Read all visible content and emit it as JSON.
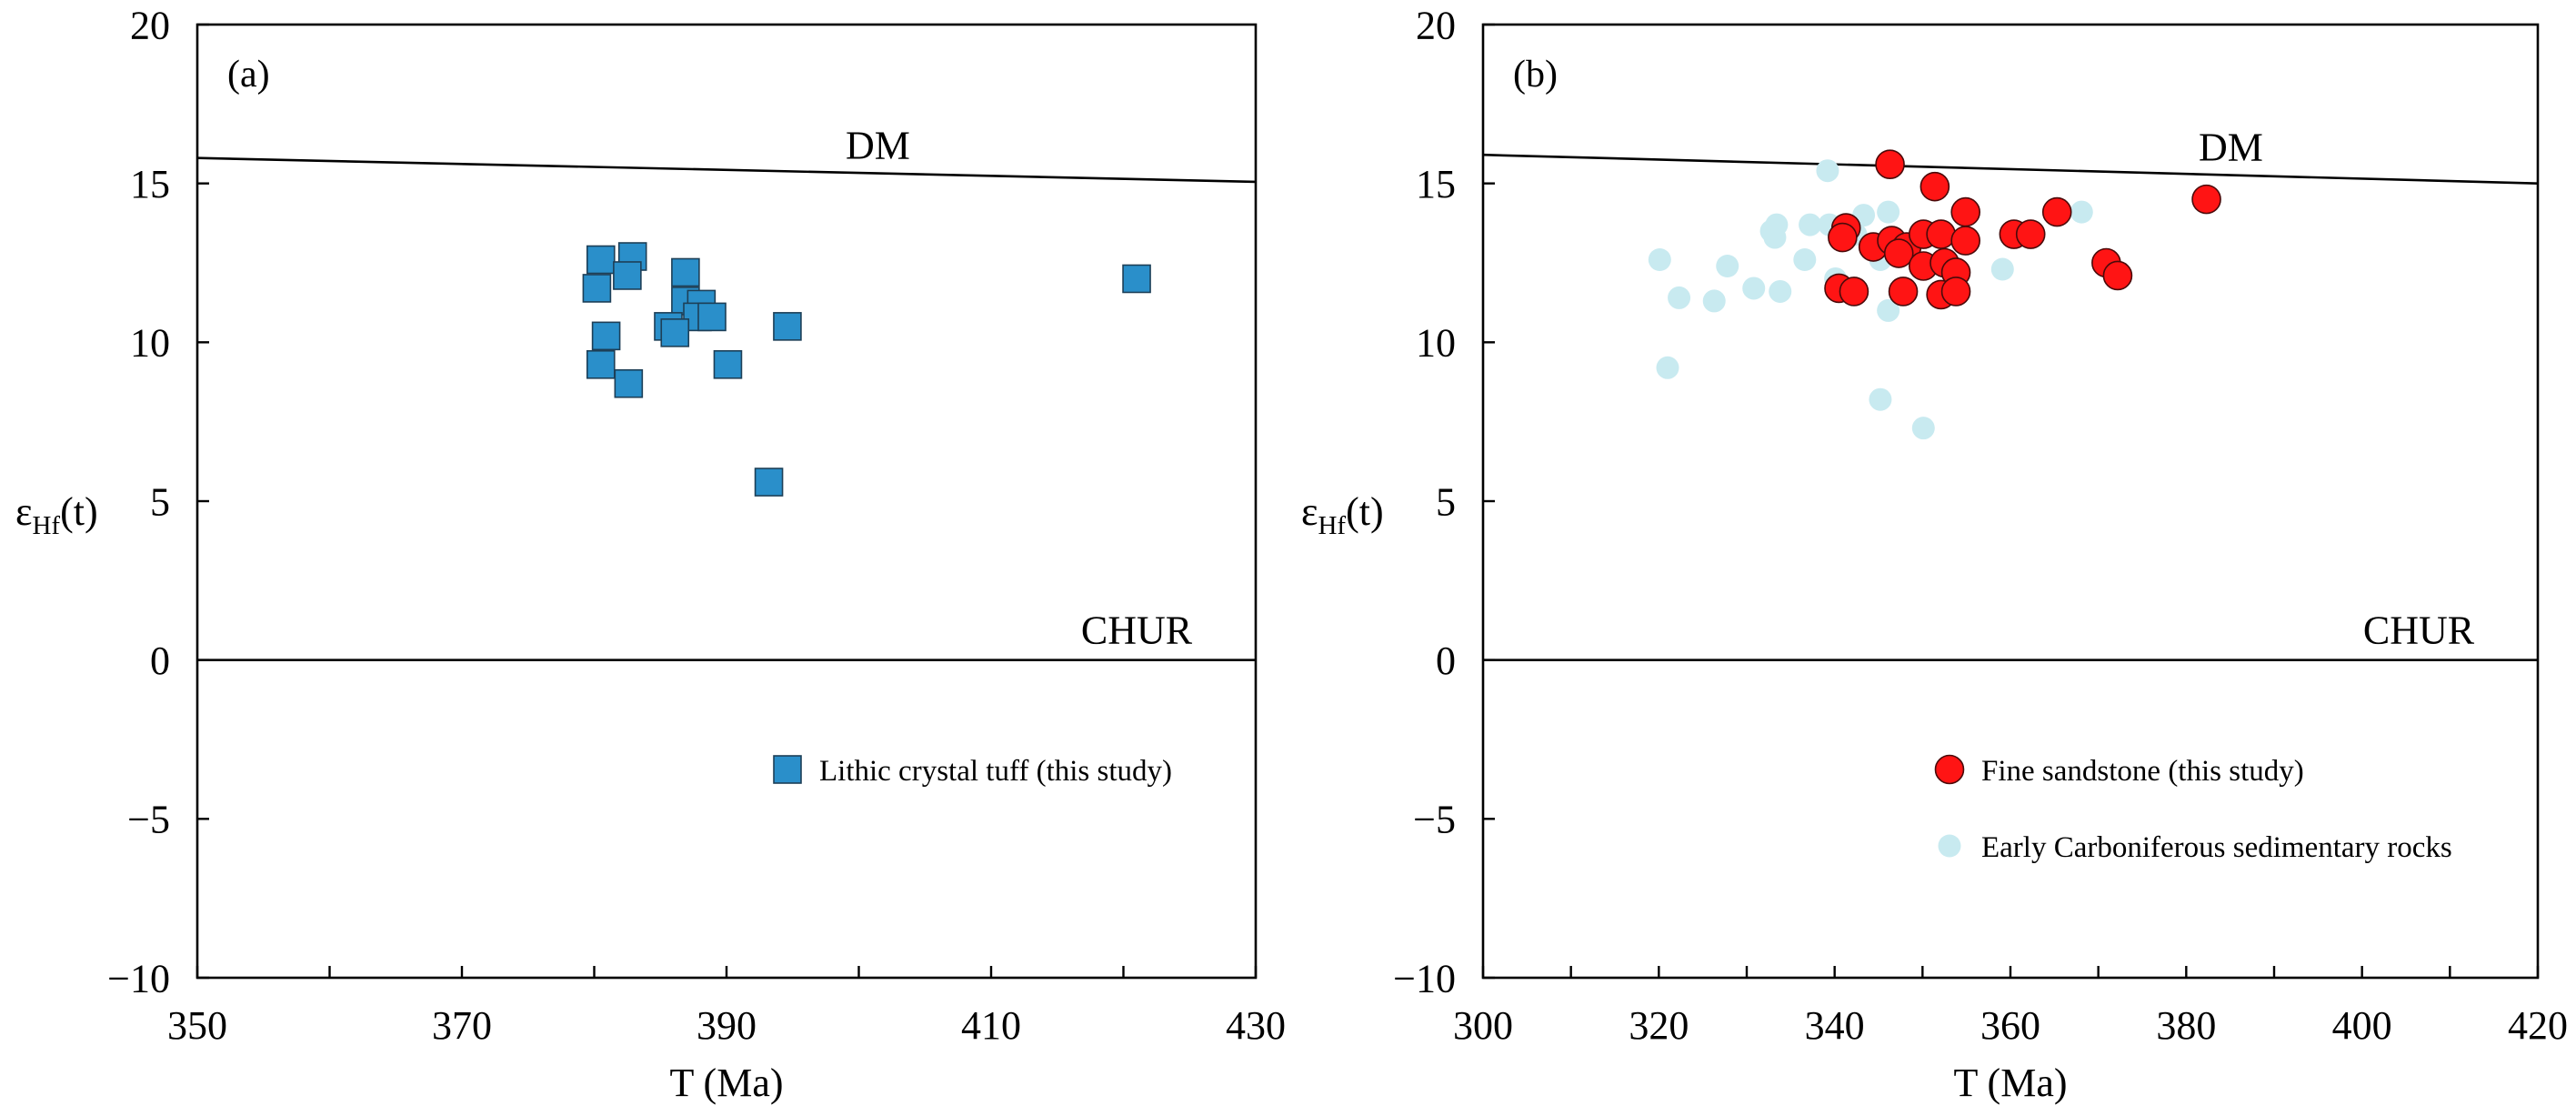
{
  "chart_data": [
    {
      "panel_label": "(a)",
      "type": "scatter",
      "xlabel": "T (Ma)",
      "ylabel": {
        "symbol": "ε",
        "subscript": "Hf",
        "suffix": "(t)"
      },
      "xlim": [
        350,
        430
      ],
      "ylim": [
        -10,
        20
      ],
      "xticks": [
        350,
        370,
        390,
        410,
        430
      ],
      "xtick_labels": [
        "350",
        "370",
        "390",
        "410",
        "430"
      ],
      "xminor_ticks": [
        360,
        380,
        400,
        420
      ],
      "yticks": [
        20,
        15,
        10,
        5,
        0,
        -5,
        -10
      ],
      "ytick_labels": [
        "20",
        "15",
        "10",
        "5",
        "0",
        "−5",
        "−10"
      ],
      "grid": false,
      "reference_lines": [
        {
          "name": "DM",
          "x": [
            350,
            430
          ],
          "y": [
            15.8,
            15.05
          ]
        },
        {
          "name": "CHUR",
          "x": [
            350,
            430
          ],
          "y": [
            0,
            0
          ]
        }
      ],
      "legend": "lower-right",
      "series": [
        {
          "name": "Lithic crystal tuff (this study)",
          "marker": "square",
          "color": "#2a8fca",
          "edge_color": "#1d3f57",
          "x": [
            380.5,
            382.9,
            382.5,
            380.2,
            386.9,
            386.9,
            388.1,
            387.8,
            388.9,
            385.6,
            386.1,
            380.9,
            380.5,
            390.1,
            382.6,
            394.6,
            393.2,
            421.0
          ],
          "y": [
            12.6,
            12.7,
            12.1,
            11.7,
            12.2,
            11.3,
            11.2,
            10.8,
            10.8,
            10.5,
            10.3,
            10.2,
            9.3,
            9.3,
            8.7,
            10.5,
            5.6,
            12.0
          ]
        }
      ]
    },
    {
      "panel_label": "(b)",
      "type": "scatter",
      "xlabel": "T (Ma)",
      "ylabel": {
        "symbol": "ε",
        "subscript": "Hf",
        "suffix": "(t)"
      },
      "xlim": [
        300,
        420
      ],
      "ylim": [
        -10,
        20
      ],
      "xticks": [
        300,
        320,
        340,
        360,
        380,
        400,
        420
      ],
      "xtick_labels": [
        "300",
        "320",
        "340",
        "360",
        "380",
        "400",
        "420"
      ],
      "xminor_ticks": [
        310,
        330,
        350,
        370,
        390,
        410
      ],
      "yticks": [
        20,
        15,
        10,
        5,
        0,
        -5,
        -10
      ],
      "ytick_labels": [
        "20",
        "15",
        "10",
        "5",
        "0",
        "−5",
        "−10"
      ],
      "grid": false,
      "reference_lines": [
        {
          "name": "DM",
          "x": [
            300,
            420
          ],
          "y": [
            15.9,
            15.0
          ]
        },
        {
          "name": "CHUR",
          "x": [
            300,
            420
          ],
          "y": [
            0,
            0
          ]
        }
      ],
      "legend": "lower-right",
      "series": [
        {
          "name": "Fine sandstone (this study)",
          "marker": "circle",
          "color": "#ff1414",
          "edge_color": "#4a0a0a",
          "x": [
            346.3,
            351.4,
            354.9,
            365.3,
            382.3,
            341.3,
            340.9,
            344.4,
            346.5,
            348.2,
            350.1,
            352.1,
            354.9,
            360.4,
            362.3,
            347.3,
            350.1,
            352.5,
            353.8,
            370.9,
            372.2,
            340.5,
            342.2,
            347.8,
            352.1,
            353.8
          ],
          "y": [
            15.6,
            14.9,
            14.1,
            14.1,
            14.5,
            13.6,
            13.3,
            13.0,
            13.2,
            13.0,
            13.4,
            13.4,
            13.2,
            13.4,
            13.4,
            12.8,
            12.4,
            12.5,
            12.2,
            12.5,
            12.1,
            11.7,
            11.6,
            11.6,
            11.5,
            11.6
          ]
        },
        {
          "name": "Early Carboniferous sedimentary rocks",
          "marker": "circle",
          "color": "#c8eaf0",
          "edge_color": null,
          "x": [
            320.1,
            321.0,
            322.3,
            326.3,
            327.8,
            330.8,
            332.8,
            333.4,
            333.2,
            333.8,
            336.6,
            337.2,
            339.2,
            339.4,
            343.3,
            346.1,
            340.1,
            345.2,
            346.1,
            345.2,
            350.1,
            359.1,
            368.1,
            342.4
          ],
          "y": [
            12.6,
            9.2,
            11.4,
            11.3,
            12.4,
            11.7,
            13.5,
            13.7,
            13.3,
            11.6,
            12.6,
            13.7,
            15.4,
            13.7,
            14.0,
            14.1,
            12.0,
            12.6,
            11.0,
            8.2,
            7.3,
            12.3,
            14.1,
            13.4
          ]
        }
      ]
    }
  ]
}
